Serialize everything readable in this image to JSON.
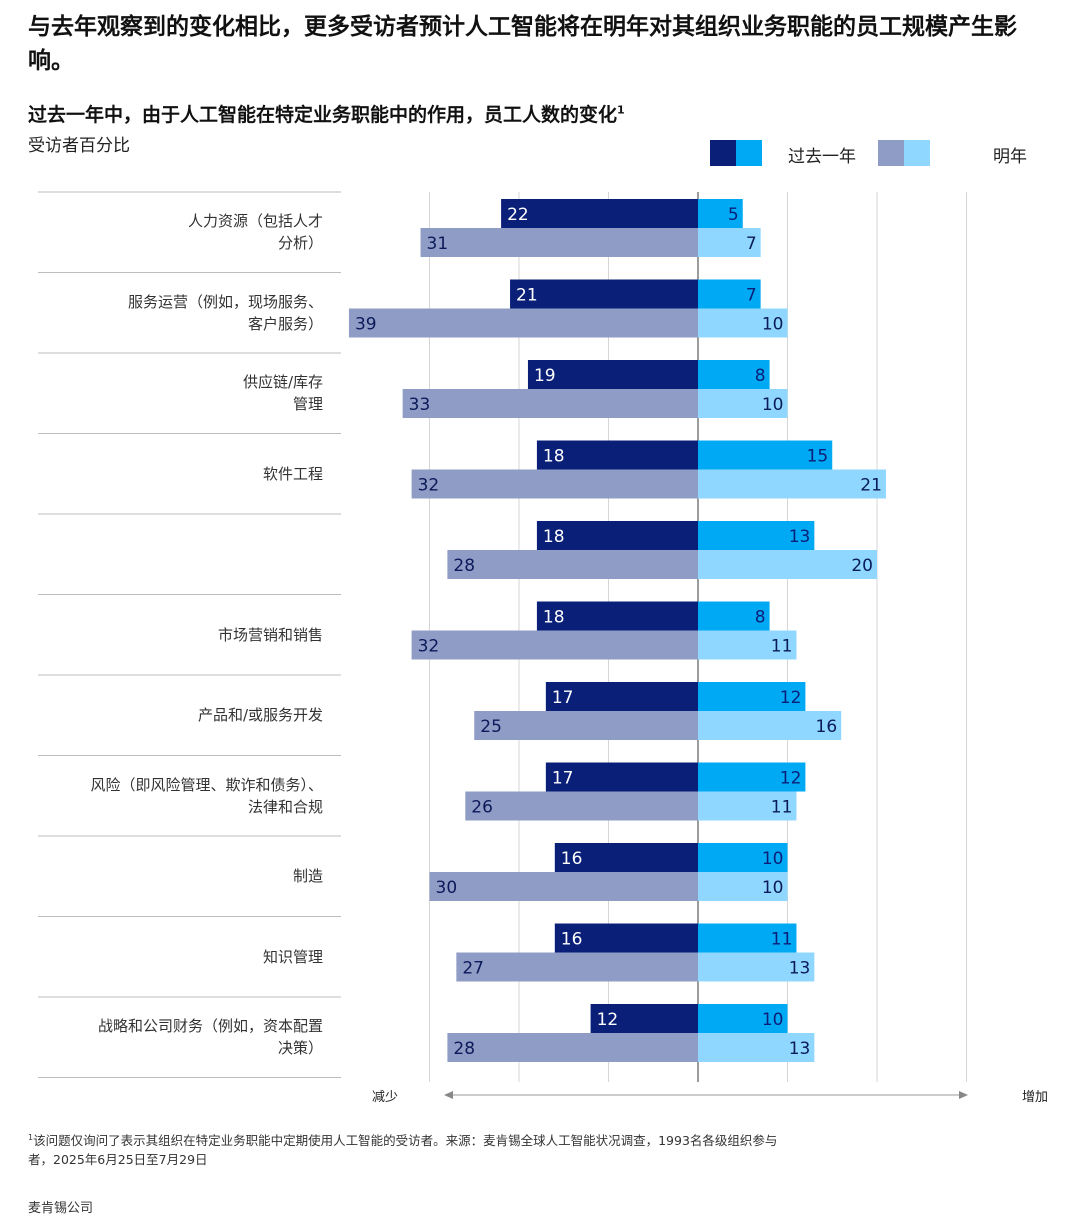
{
  "header": {
    "headline": "与去年观察到的变化相比，更多受访者预计人工智能将在明年对其组织业务职能的员工规模产生影响。",
    "chart_title": "过去一年中，由于人工智能在特定业务职能中的作用，员工人数的变化",
    "chart_title_sup": "1",
    "chart_subtitle": "受访者百分比"
  },
  "legend": {
    "past_year": "过去一年",
    "next_year": "明年"
  },
  "axis": {
    "decrease_label": "减少",
    "increase_label": "增加"
  },
  "colors": {
    "past_decrease": "#0a1f78",
    "past_increase": "#00a9f4",
    "next_decrease": "#8f9cc6",
    "next_increase": "#8fd7ff"
  },
  "chart_data": {
    "type": "bar",
    "orientation": "horizontal-diverging",
    "categories": [
      [
        "人力资源（包括人才",
        "分析）"
      ],
      [
        "服务运营（例如，现场服务、",
        "客户服务）"
      ],
      [
        "供应链/库存",
        "管理"
      ],
      [
        "软件工程"
      ],
      [
        ""
      ],
      [
        "市场营销和销售"
      ],
      [
        "产品和/或服务开发"
      ],
      [
        "风险（即风险管理、欺诈和债务）、",
        "法律和合规"
      ],
      [
        "制造"
      ],
      [
        "知识管理"
      ],
      [
        "战略和公司财务（例如，资本配置",
        "决策）"
      ]
    ],
    "series": [
      {
        "name": "过去一年",
        "direction": "decrease",
        "values": [
          22,
          21,
          19,
          18,
          18,
          18,
          17,
          17,
          16,
          16,
          12
        ]
      },
      {
        "name": "过去一年",
        "direction": "increase",
        "values": [
          5,
          7,
          8,
          15,
          13,
          8,
          12,
          12,
          10,
          11,
          10
        ]
      },
      {
        "name": "明年",
        "direction": "decrease",
        "values": [
          31,
          39,
          33,
          32,
          28,
          32,
          25,
          26,
          30,
          27,
          28
        ]
      },
      {
        "name": "明年",
        "direction": "increase",
        "values": [
          7,
          10,
          10,
          21,
          20,
          11,
          16,
          11,
          10,
          13,
          13
        ]
      }
    ],
    "xlim": [
      -30,
      30
    ],
    "grid": true,
    "legend_position": "top-right"
  },
  "footnote": {
    "marker": "1",
    "text": "该问题仅询问了表示其组织在特定业务职能中定期使用人工智能的受访者。来源：麦肯锡全球人工智能状况调查，1993名各级组织参与者，2025年6月25日至7月29日"
  },
  "source": "麦肯锡公司"
}
